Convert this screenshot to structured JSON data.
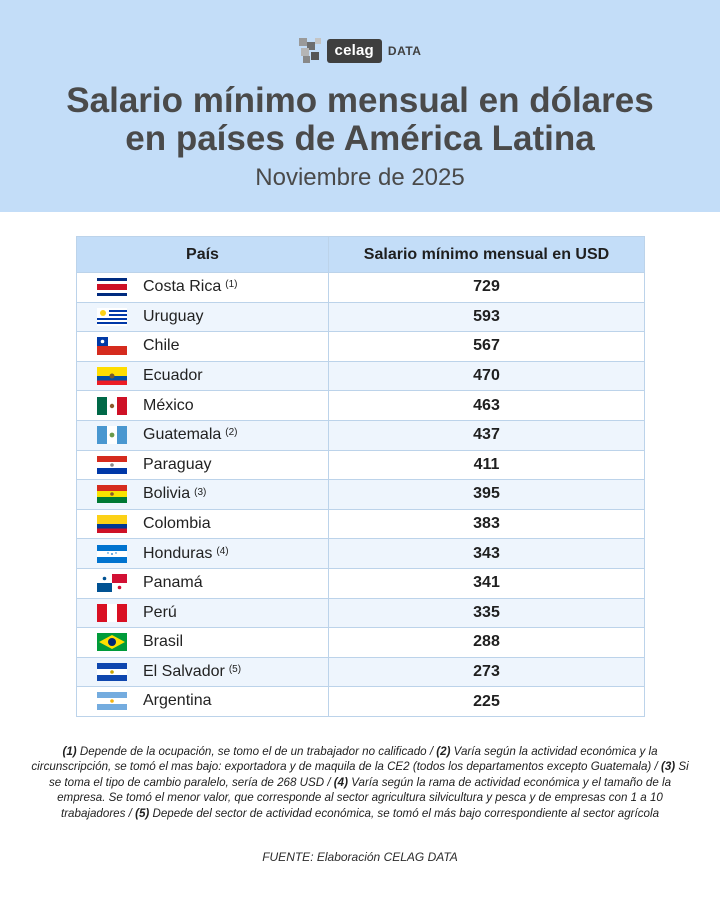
{
  "brand": {
    "name": "celag",
    "suffix": "DATA"
  },
  "header": {
    "title_line1": "Salario mínimo mensual en dólares",
    "title_line2": "en países de América Latina",
    "subtitle": "Noviembre de 2025"
  },
  "chart_data": {
    "type": "table",
    "title": "Salario mínimo mensual en dólares en países de América Latina",
    "subtitle": "Noviembre de 2025",
    "columns": [
      "País",
      "Salario mínimo mensual en USD"
    ],
    "rows": [
      {
        "country": "Costa Rica",
        "note": "(1)",
        "value": 729,
        "flag": "costa-rica-flag"
      },
      {
        "country": "Uruguay",
        "note": "",
        "value": 593,
        "flag": "uruguay-flag"
      },
      {
        "country": "Chile",
        "note": "",
        "value": 567,
        "flag": "chile-flag"
      },
      {
        "country": "Ecuador",
        "note": "",
        "value": 470,
        "flag": "ecuador-flag"
      },
      {
        "country": "México",
        "note": "",
        "value": 463,
        "flag": "mexico-flag"
      },
      {
        "country": "Guatemala",
        "note": "(2)",
        "value": 437,
        "flag": "guatemala-flag"
      },
      {
        "country": "Paraguay",
        "note": "",
        "value": 411,
        "flag": "paraguay-flag"
      },
      {
        "country": "Bolivia",
        "note": "(3)",
        "value": 395,
        "flag": "bolivia-flag"
      },
      {
        "country": "Colombia",
        "note": "",
        "value": 383,
        "flag": "colombia-flag"
      },
      {
        "country": "Honduras",
        "note": "(4)",
        "value": 343,
        "flag": "honduras-flag"
      },
      {
        "country": "Panamá",
        "note": "",
        "value": 341,
        "flag": "panama-flag"
      },
      {
        "country": "Perú",
        "note": "",
        "value": 335,
        "flag": "peru-flag"
      },
      {
        "country": "Brasil",
        "note": "",
        "value": 288,
        "flag": "brazil-flag"
      },
      {
        "country": "El Salvador",
        "note": "(5)",
        "value": 273,
        "flag": "el-salvador-flag"
      },
      {
        "country": "Argentina",
        "note": "",
        "value": 225,
        "flag": "argentina-flag"
      }
    ]
  },
  "footnotes": [
    {
      "marker": "(1)",
      "text": " Depende de la ocupación, se tomo el de un trabajador no calificado / "
    },
    {
      "marker": "(2)",
      "text": " Varía según la actividad económica y la circunscripción, se tomó el mas bajo: exportadora y de maquila de la CE2 (todos los departamentos excepto Guatemala) / "
    },
    {
      "marker": "(3)",
      "text": " Si se toma el tipo de cambio paralelo, sería de 268 USD / "
    },
    {
      "marker": "(4)",
      "text": " Varía según la rama de actividad económica y el tamaño de la empresa. Se tomó el menor valor, que corresponde al sector agricultura silvicultura y pesca y de empresas con 1 a 10 trabajadores / "
    },
    {
      "marker": "(5)",
      "text": " Depede del sector de actividad económica, se tomó el más bajo correspondiente al sector agrícola"
    }
  ],
  "source": "FUENTE: Elaboración CELAG DATA",
  "colors": {
    "header_bg": "#c3ddf8",
    "row_alt": "#eef5fd",
    "border": "#bcd3ea",
    "title": "#4a4a4a"
  }
}
